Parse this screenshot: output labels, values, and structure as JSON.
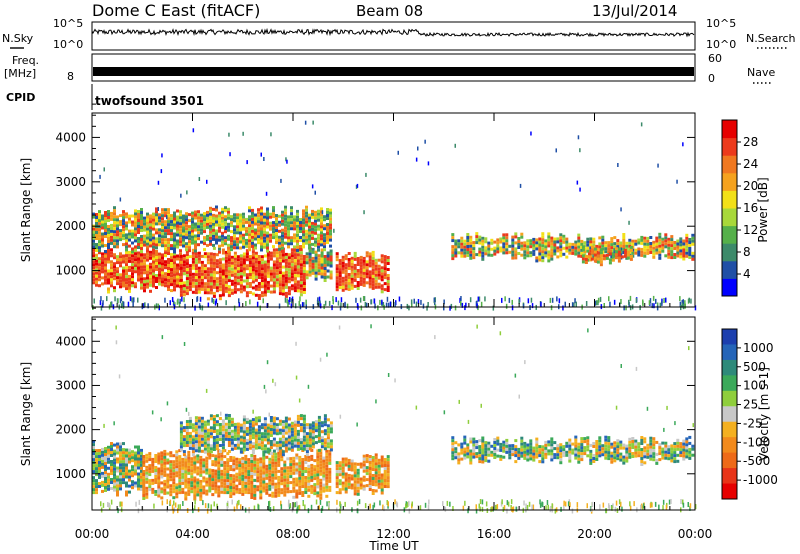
{
  "header": {
    "title": "Dome C East (fitACF)",
    "beam": "Beam 08",
    "date": "13/Jul/2014"
  },
  "top_panels": {
    "nsky_label": "N.Sky",
    "nsky_ticks": [
      "10^5",
      "10^0"
    ],
    "nsearch_label": "N.Search",
    "nsearch_ticks": [
      "10^5",
      "10^0"
    ],
    "freq_label_1": "Freq.",
    "freq_label_2": "[MHz]",
    "freq_ticks": [
      "8"
    ],
    "nave_label": "Nave",
    "nave_ticks": [
      "60",
      "0"
    ],
    "cpid_label": "CPID",
    "cpid_value": "twofsound 3501"
  },
  "colors": {
    "power": [
      "#0000ff",
      "#1f4fa6",
      "#3c8a6a",
      "#55b04a",
      "#a8d83a",
      "#f2e018",
      "#f5a21e",
      "#f07820",
      "#ec3a1c",
      "#e60000"
    ],
    "velocity": [
      "#1c3fae",
      "#2565b8",
      "#2e8a7a",
      "#3ba95a",
      "#8fce3c",
      "#c8c8c8",
      "#f4b020",
      "#f28a1c",
      "#ee6a18",
      "#e83418",
      "#e60000"
    ]
  },
  "chart_data": [
    {
      "type": "heatmap",
      "name": "power-panel",
      "ylabel": "Slant Range [km]",
      "x_ticks": [
        "00:00",
        "04:00",
        "08:00",
        "12:00",
        "16:00",
        "20:00",
        "00:00"
      ],
      "y_ticks": [
        "1000",
        "2000",
        "3000",
        "4000"
      ],
      "ylim": [
        180,
        4550
      ],
      "xlim_hours": [
        0,
        24
      ],
      "colorbar_label": "Power [dB]",
      "colorbar_ticks": [
        "4",
        "8",
        "12",
        "16",
        "20",
        "24",
        "28"
      ],
      "bands": [
        {
          "t": [
            0.0,
            3.5
          ],
          "r": [
            600,
            1500
          ],
          "level": "high"
        },
        {
          "t": [
            3.5,
            8.5
          ],
          "r": [
            450,
            1500
          ],
          "level": "high"
        },
        {
          "t": [
            8.5,
            9.5
          ],
          "r": [
            800,
            1500
          ],
          "level": "mixed"
        },
        {
          "t": [
            9.7,
            11.8
          ],
          "r": [
            600,
            1400
          ],
          "level": "high"
        },
        {
          "t": [
            0.0,
            9.5
          ],
          "r": [
            1500,
            2400
          ],
          "level": "mixed"
        },
        {
          "t": [
            14.3,
            23.9
          ],
          "r": [
            1300,
            1800
          ],
          "level": "mixed"
        },
        {
          "t": [
            19.5,
            21.5
          ],
          "r": [
            1200,
            1500
          ],
          "level": "mid"
        }
      ]
    },
    {
      "type": "heatmap",
      "name": "velocity-panel",
      "ylabel": "Slant Range [km]",
      "x_ticks": [
        "00:00",
        "04:00",
        "08:00",
        "12:00",
        "16:00",
        "20:00",
        "00:00"
      ],
      "y_ticks": [
        "1000",
        "2000",
        "3000",
        "4000"
      ],
      "ylim": [
        180,
        4550
      ],
      "xlim_hours": [
        0,
        24
      ],
      "xlabel": "Time UT",
      "colorbar_label": "Velocity [m s-1]",
      "colorbar_ticks": [
        "1000",
        "500",
        "100",
        "25",
        "-25",
        "-100",
        "-500",
        "-1000"
      ],
      "bands": [
        {
          "t": [
            0.0,
            2.0
          ],
          "r": [
            600,
            1700
          ],
          "level": "mixed"
        },
        {
          "t": [
            2.0,
            9.5
          ],
          "r": [
            500,
            1500
          ],
          "level": "negative"
        },
        {
          "t": [
            3.5,
            9.5
          ],
          "r": [
            1500,
            2300
          ],
          "level": "mixed"
        },
        {
          "t": [
            9.7,
            11.8
          ],
          "r": [
            600,
            1400
          ],
          "level": "negative"
        },
        {
          "t": [
            14.3,
            23.9
          ],
          "r": [
            1300,
            1800
          ],
          "level": "mixed"
        }
      ]
    }
  ]
}
